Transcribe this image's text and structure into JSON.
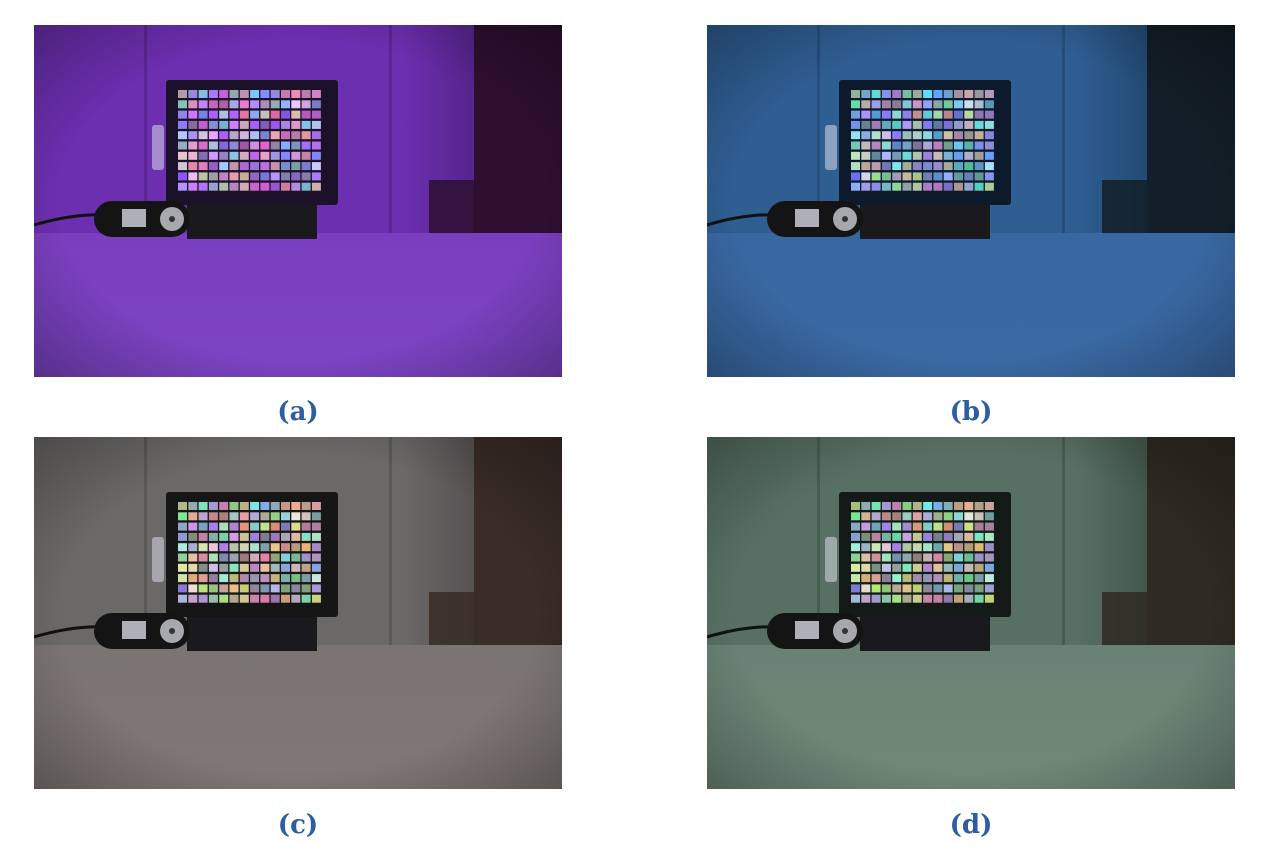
{
  "figure": {
    "panels": [
      {
        "id": "a",
        "caption": "(a)",
        "tint": {
          "wall": "#6c2fb0",
          "wallDark": "#3a1660",
          "table": "#7a3fbf",
          "tableNear": "#7c44c4",
          "right": "#2e0f30",
          "card": "#1b1229"
        }
      },
      {
        "id": "b",
        "caption": "(b)",
        "tint": {
          "wall": "#2f5e92",
          "wallDark": "#15314f",
          "table": "#3868a2",
          "tableNear": "#3a6aa5",
          "right": "#131e28",
          "card": "#0c1a2b"
        }
      },
      {
        "id": "c",
        "caption": "(c)",
        "tint": {
          "wall": "#6b6968",
          "wallDark": "#3a3838",
          "table": "#7a7473",
          "tableNear": "#807876",
          "right": "#3a2c26",
          "card": "#161616"
        }
      },
      {
        "id": "d",
        "caption": "(d)",
        "tint": {
          "wall": "#587063",
          "wallDark": "#2b3a32",
          "table": "#6a8273",
          "tableNear": "#6f8878",
          "right": "#2f2a22",
          "card": "#141a17"
        }
      }
    ]
  }
}
